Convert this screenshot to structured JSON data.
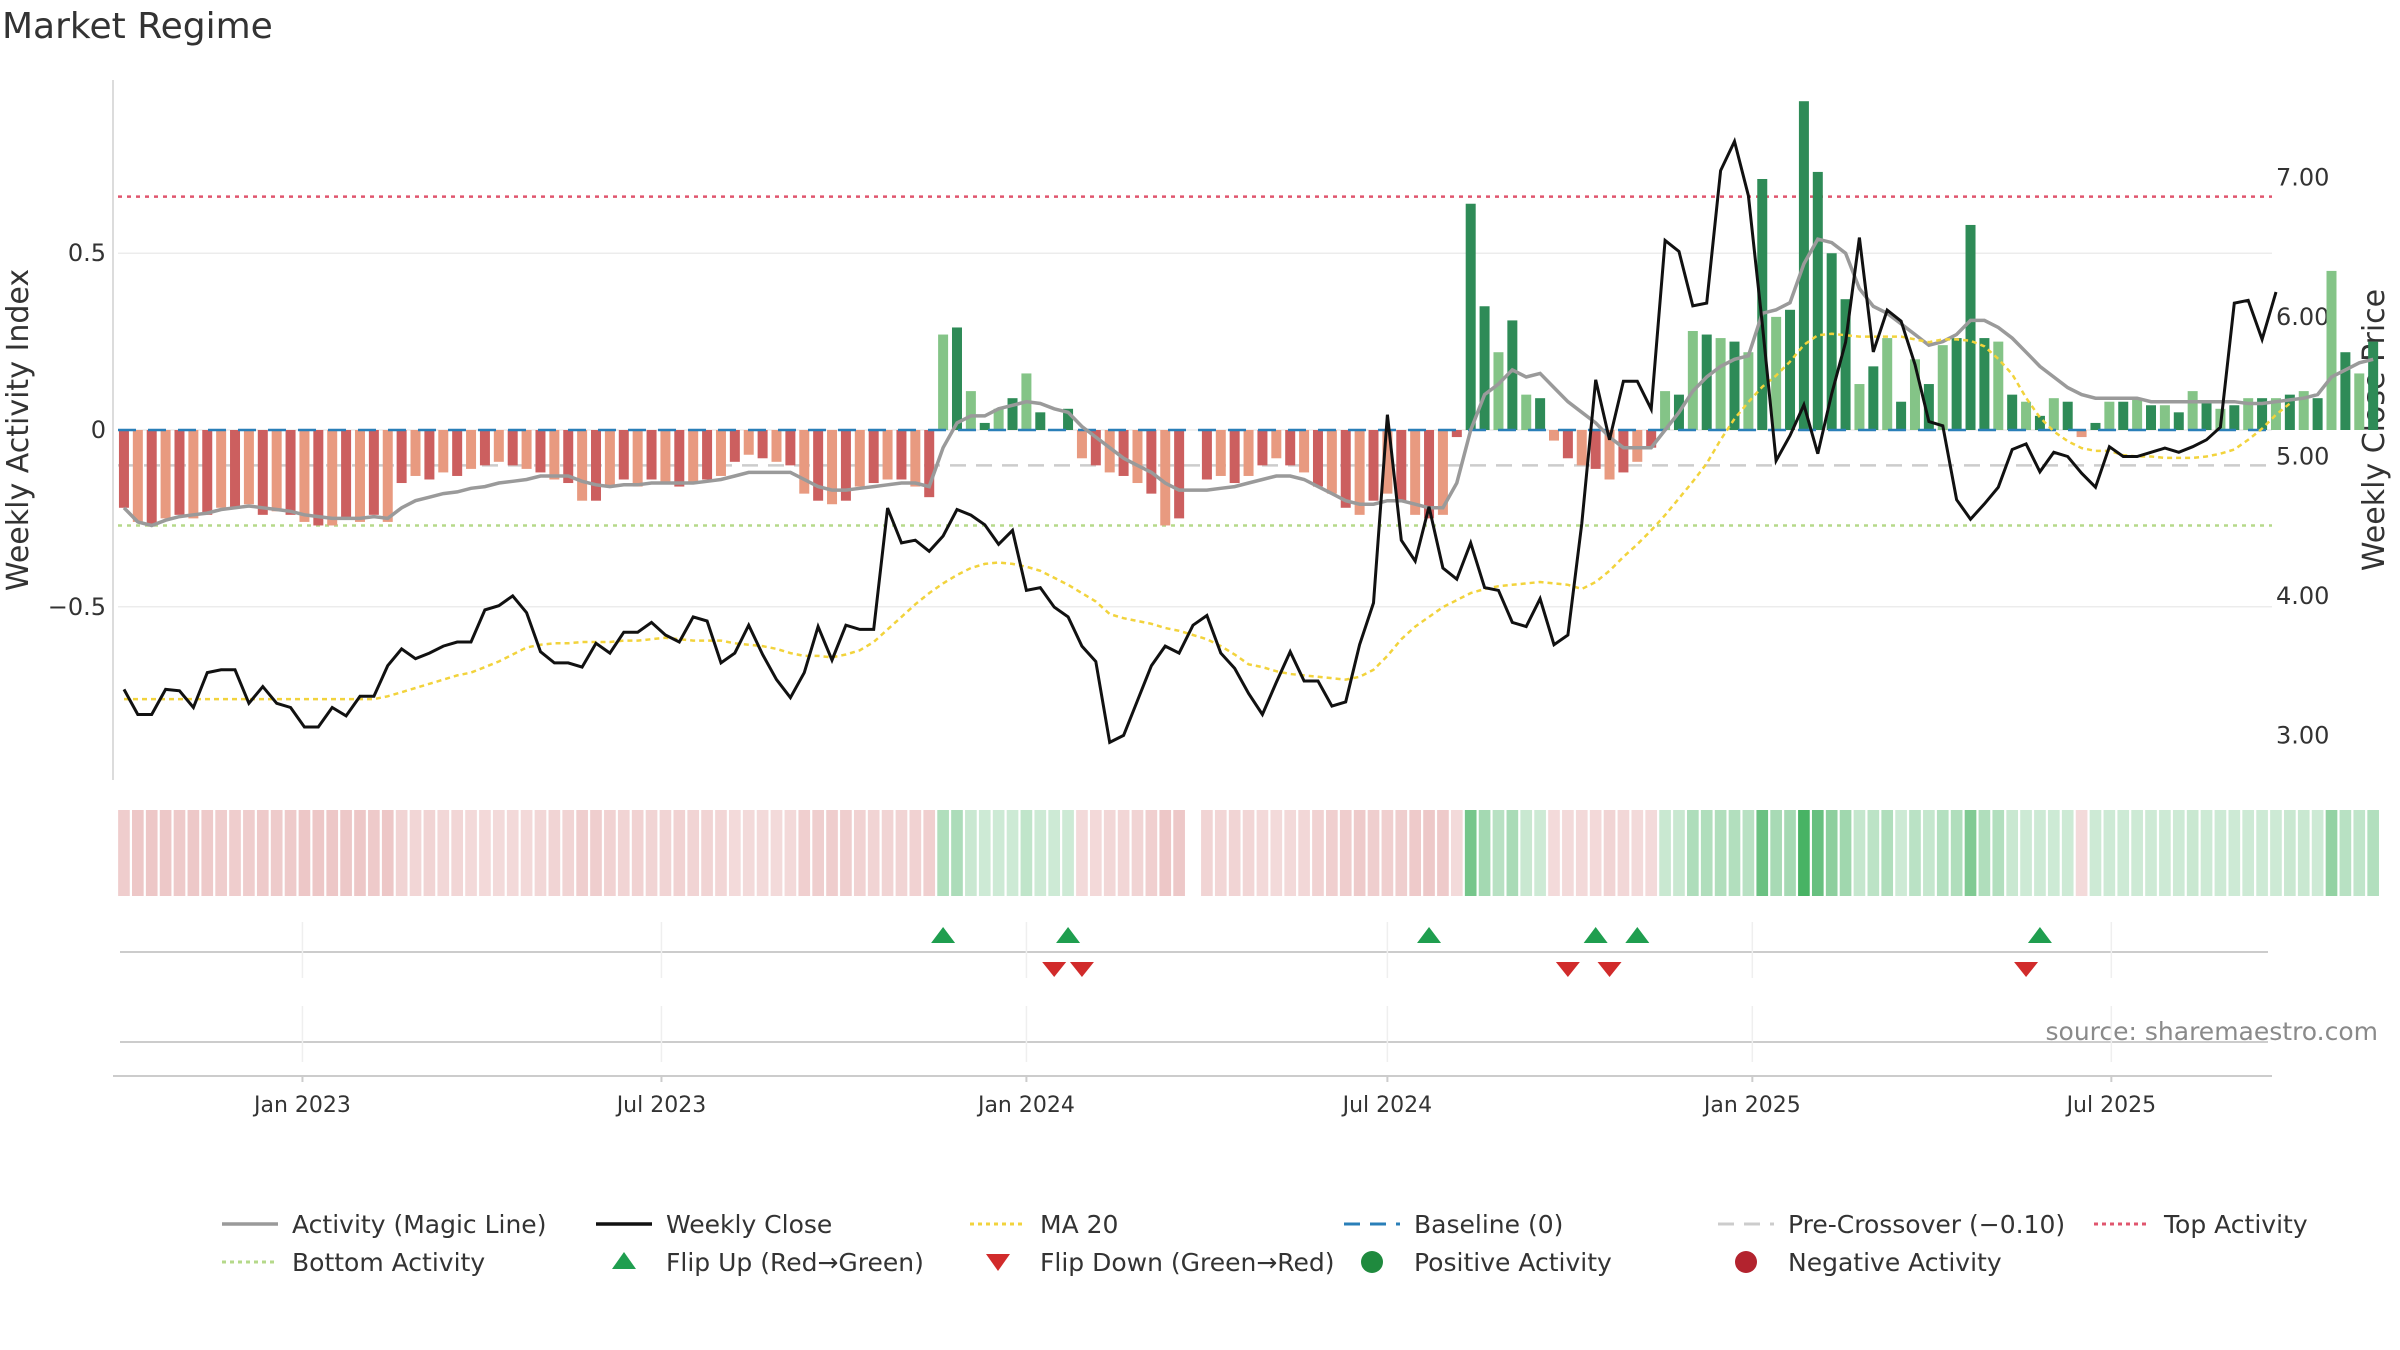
{
  "chart_data": {
    "type": "bar",
    "title": "Market Regime",
    "ylabel": "Weekly Activity Index",
    "ylabel_right": "Weekly Close Price",
    "source": "source: sharemaestro.com",
    "ylim": [
      -0.99,
      0.99
    ],
    "y2lim": [
      2.68,
      7.7
    ],
    "yticks": [
      {
        "v": 0.5,
        "label": "0.5"
      },
      {
        "v": 0.0,
        "label": "0"
      },
      {
        "v": -0.5,
        "label": "−0.5"
      }
    ],
    "y2ticks": [
      {
        "v": 7.0,
        "label": "7.00"
      },
      {
        "v": 6.0,
        "label": "6.00"
      },
      {
        "v": 5.0,
        "label": "5.00"
      },
      {
        "v": 4.0,
        "label": "4.00"
      },
      {
        "v": 3.0,
        "label": "3.00"
      }
    ],
    "x_start": "2022-10-03",
    "x_range": [
      "2022-09-30",
      "2025-09-20"
    ],
    "x_ticks": [
      {
        "date": "2023-01-01",
        "label": "Jan 2023"
      },
      {
        "date": "2023-07-01",
        "label": "Jul 2023"
      },
      {
        "date": "2024-01-01",
        "label": "Jan 2024"
      },
      {
        "date": "2024-07-01",
        "label": "Jul 2024"
      },
      {
        "date": "2025-01-01",
        "label": "Jan 2025"
      },
      {
        "date": "2025-07-01",
        "label": "Jul 2025"
      }
    ],
    "reference_lines": {
      "top_activity": 0.66,
      "bottom_activity": -0.27,
      "pre_crossover": -0.1,
      "baseline": 0
    },
    "activity": [
      -0.22,
      -0.26,
      -0.27,
      -0.25,
      -0.24,
      -0.25,
      -0.24,
      -0.22,
      -0.22,
      -0.21,
      -0.24,
      -0.23,
      -0.24,
      -0.26,
      -0.27,
      -0.27,
      -0.25,
      -0.26,
      -0.24,
      -0.26,
      -0.15,
      -0.13,
      -0.14,
      -0.12,
      -0.13,
      -0.11,
      -0.1,
      -0.09,
      -0.1,
      -0.11,
      -0.12,
      -0.14,
      -0.15,
      -0.2,
      -0.2,
      -0.16,
      -0.14,
      -0.16,
      -0.14,
      -0.15,
      -0.16,
      -0.15,
      -0.14,
      -0.13,
      -0.09,
      -0.07,
      -0.08,
      -0.09,
      -0.1,
      -0.18,
      -0.2,
      -0.21,
      -0.2,
      -0.16,
      -0.15,
      -0.14,
      -0.14,
      -0.16,
      -0.19,
      0.27,
      0.29,
      0.11,
      0.02,
      0.06,
      0.09,
      0.16,
      0.05,
      0.0,
      0.06,
      -0.08,
      -0.1,
      -0.12,
      -0.13,
      -0.15,
      -0.18,
      -0.27,
      -0.25,
      null,
      -0.14,
      -0.13,
      -0.15,
      -0.13,
      -0.1,
      -0.08,
      -0.1,
      -0.12,
      -0.16,
      -0.18,
      -0.22,
      -0.24,
      -0.2,
      -0.18,
      -0.2,
      -0.24,
      -0.25,
      -0.24,
      -0.02,
      0.64,
      0.35,
      0.22,
      0.31,
      0.1,
      0.09,
      -0.03,
      -0.08,
      -0.1,
      -0.11,
      -0.14,
      -0.12,
      -0.09,
      -0.05,
      0.11,
      0.1,
      0.28,
      0.27,
      0.26,
      0.25,
      0.22,
      0.71,
      0.32,
      0.34,
      0.93,
      0.73,
      0.5,
      0.37,
      0.13,
      0.18,
      0.26,
      0.08,
      0.2,
      0.13,
      0.24,
      0.26,
      0.58,
      0.26,
      0.25,
      0.1,
      0.08,
      0.04,
      0.09,
      0.08,
      -0.02,
      0.02,
      0.08,
      0.08,
      0.09,
      0.07,
      0.07,
      0.05,
      0.11,
      0.08,
      0.06,
      0.07,
      0.09,
      0.09,
      0.09,
      0.1,
      0.11,
      0.09,
      0.45,
      0.22,
      0.16,
      0.25
    ],
    "magic_line": [
      -0.22,
      -0.26,
      -0.27,
      -0.255,
      -0.245,
      -0.24,
      -0.235,
      -0.225,
      -0.22,
      -0.215,
      -0.22,
      -0.225,
      -0.23,
      -0.24,
      -0.245,
      -0.25,
      -0.25,
      -0.25,
      -0.245,
      -0.25,
      -0.22,
      -0.2,
      -0.19,
      -0.18,
      -0.175,
      -0.165,
      -0.16,
      -0.15,
      -0.145,
      -0.14,
      -0.13,
      -0.13,
      -0.13,
      -0.145,
      -0.155,
      -0.16,
      -0.155,
      -0.155,
      -0.15,
      -0.15,
      -0.15,
      -0.15,
      -0.145,
      -0.14,
      -0.13,
      -0.12,
      -0.12,
      -0.12,
      -0.12,
      -0.14,
      -0.16,
      -0.17,
      -0.17,
      -0.165,
      -0.16,
      -0.155,
      -0.15,
      -0.15,
      -0.16,
      -0.05,
      0.02,
      0.04,
      0.04,
      0.06,
      0.07,
      0.08,
      0.075,
      0.06,
      0.05,
      0.01,
      -0.02,
      -0.05,
      -0.08,
      -0.1,
      -0.12,
      -0.15,
      -0.17,
      -0.17,
      -0.17,
      -0.165,
      -0.16,
      -0.15,
      -0.14,
      -0.13,
      -0.13,
      -0.14,
      -0.16,
      -0.18,
      -0.2,
      -0.21,
      -0.21,
      -0.2,
      -0.2,
      -0.21,
      -0.22,
      -0.22,
      -0.15,
      0.0,
      0.1,
      0.13,
      0.17,
      0.15,
      0.16,
      0.12,
      0.08,
      0.05,
      0.02,
      -0.02,
      -0.05,
      -0.05,
      -0.05,
      0.0,
      0.05,
      0.11,
      0.15,
      0.18,
      0.2,
      0.21,
      0.33,
      0.34,
      0.36,
      0.47,
      0.54,
      0.53,
      0.5,
      0.4,
      0.35,
      0.33,
      0.3,
      0.27,
      0.24,
      0.25,
      0.27,
      0.31,
      0.31,
      0.29,
      0.26,
      0.22,
      0.18,
      0.15,
      0.12,
      0.1,
      0.09,
      0.09,
      0.09,
      0.09,
      0.08,
      0.08,
      0.08,
      0.08,
      0.08,
      0.08,
      0.08,
      0.075,
      0.075,
      0.08,
      0.085,
      0.09,
      0.1,
      0.15,
      0.17,
      0.19,
      0.2
    ],
    "weekly_close": [
      3.33,
      3.15,
      3.15,
      3.33,
      3.32,
      3.2,
      3.45,
      3.47,
      3.47,
      3.23,
      3.35,
      3.23,
      3.2,
      3.06,
      3.06,
      3.2,
      3.14,
      3.28,
      3.28,
      3.5,
      3.62,
      3.55,
      3.59,
      3.64,
      3.67,
      3.67,
      3.9,
      3.93,
      4.0,
      3.88,
      3.6,
      3.52,
      3.52,
      3.49,
      3.66,
      3.59,
      3.74,
      3.74,
      3.81,
      3.72,
      3.67,
      3.85,
      3.82,
      3.52,
      3.59,
      3.79,
      3.58,
      3.4,
      3.27,
      3.45,
      3.78,
      3.54,
      3.79,
      3.76,
      3.76,
      4.63,
      4.38,
      4.4,
      4.32,
      4.43,
      4.62,
      4.58,
      4.51,
      4.37,
      4.47,
      4.04,
      4.06,
      3.92,
      3.85,
      3.64,
      3.53,
      2.95,
      3.0,
      3.25,
      3.5,
      3.64,
      3.59,
      3.79,
      3.86,
      3.59,
      3.48,
      3.3,
      3.15,
      3.38,
      3.6,
      3.39,
      3.39,
      3.21,
      3.24,
      3.65,
      3.95,
      5.3,
      4.4,
      4.25,
      4.64,
      4.2,
      4.12,
      4.38,
      4.06,
      4.04,
      3.81,
      3.78,
      3.98,
      3.65,
      3.72,
      4.52,
      5.55,
      5.12,
      5.54,
      5.54,
      5.34,
      6.55,
      6.47,
      6.08,
      6.1,
      7.05,
      7.26,
      6.87,
      5.95,
      4.97,
      5.15,
      5.37,
      5.02,
      5.45,
      5.82,
      6.57,
      5.75,
      6.05,
      5.97,
      5.66,
      5.25,
      5.22,
      4.69,
      4.55,
      4.66,
      4.78,
      5.05,
      5.09,
      4.89,
      5.03,
      5.0,
      4.88,
      4.78,
      5.07,
      5.0,
      5.0,
      5.03,
      5.06,
      5.03,
      5.07,
      5.12,
      5.21,
      6.1,
      6.12,
      5.84,
      6.18
    ],
    "ma20": [
      3.26,
      3.26,
      3.26,
      3.26,
      3.26,
      3.26,
      3.26,
      3.26,
      3.26,
      3.26,
      3.26,
      3.26,
      3.26,
      3.26,
      3.26,
      3.26,
      3.26,
      3.26,
      3.26,
      3.28,
      3.31,
      3.34,
      3.37,
      3.4,
      3.43,
      3.45,
      3.49,
      3.53,
      3.58,
      3.63,
      3.65,
      3.66,
      3.66,
      3.67,
      3.67,
      3.67,
      3.68,
      3.68,
      3.69,
      3.7,
      3.69,
      3.68,
      3.68,
      3.68,
      3.66,
      3.65,
      3.64,
      3.62,
      3.59,
      3.57,
      3.57,
      3.56,
      3.58,
      3.61,
      3.67,
      3.76,
      3.85,
      3.94,
      4.02,
      4.09,
      4.15,
      4.2,
      4.23,
      4.24,
      4.23,
      4.21,
      4.18,
      4.13,
      4.08,
      4.02,
      3.96,
      3.87,
      3.84,
      3.82,
      3.8,
      3.77,
      3.75,
      3.72,
      3.69,
      3.64,
      3.58,
      3.51,
      3.49,
      3.46,
      3.44,
      3.43,
      3.42,
      3.41,
      3.4,
      3.42,
      3.47,
      3.57,
      3.69,
      3.78,
      3.85,
      3.92,
      3.97,
      4.02,
      4.05,
      4.07,
      4.08,
      4.09,
      4.1,
      4.09,
      4.08,
      4.05,
      4.1,
      4.18,
      4.28,
      4.37,
      4.47,
      4.58,
      4.7,
      4.82,
      4.95,
      5.12,
      5.27,
      5.39,
      5.5,
      5.58,
      5.68,
      5.8,
      5.87,
      5.88,
      5.87,
      5.86,
      5.86,
      5.86,
      5.86,
      5.84,
      5.82,
      5.84,
      5.84,
      5.83,
      5.79,
      5.7,
      5.59,
      5.42,
      5.28,
      5.18,
      5.11,
      5.06,
      5.04,
      5.04,
      5.01,
      5.0,
      5.0,
      4.99,
      4.99,
      4.99,
      5.0,
      5.02,
      5.05,
      5.12,
      5.2,
      5.3,
      5.38
    ],
    "flip_up": [
      59,
      68,
      94,
      106,
      109,
      138
    ],
    "flip_down": [
      67,
      69,
      104,
      107,
      137
    ],
    "legend": [
      {
        "label": "Activity (Magic Line)",
        "kind": "line",
        "color": "#9a9a9a"
      },
      {
        "label": "Weekly Close",
        "kind": "line",
        "color": "#111111"
      },
      {
        "label": "MA 20",
        "kind": "dotted",
        "color": "#f2d33c"
      },
      {
        "label": "Baseline (0)",
        "kind": "dashed",
        "color": "#2a7fb8"
      },
      {
        "label": "Pre-Crossover (−0.10)",
        "kind": "dashed",
        "color": "#cccccc"
      },
      {
        "label": "Top Activity",
        "kind": "dotted",
        "color": "#e0566e"
      },
      {
        "label": "Bottom Activity",
        "kind": "dotted",
        "color": "#b5d98a"
      },
      {
        "label": "Flip Up (Red→Green)",
        "kind": "triangle-up",
        "color": "#1f9e4f"
      },
      {
        "label": "Flip Down (Green→Red)",
        "kind": "triangle-down",
        "color": "#d12b2b"
      },
      {
        "label": "Positive Activity",
        "kind": "circle",
        "color": "#1f8a3e"
      },
      {
        "label": "Negative Activity",
        "kind": "circle",
        "color": "#b3232e"
      }
    ],
    "colors": {
      "pos_strong": "#2e8b57",
      "pos_light": "#84c487",
      "neg_strong": "#cc5f5f",
      "neg_light": "#e89a80",
      "close": "#111111",
      "magic": "#9a9a9a",
      "ma20": "#f2d33c"
    }
  }
}
